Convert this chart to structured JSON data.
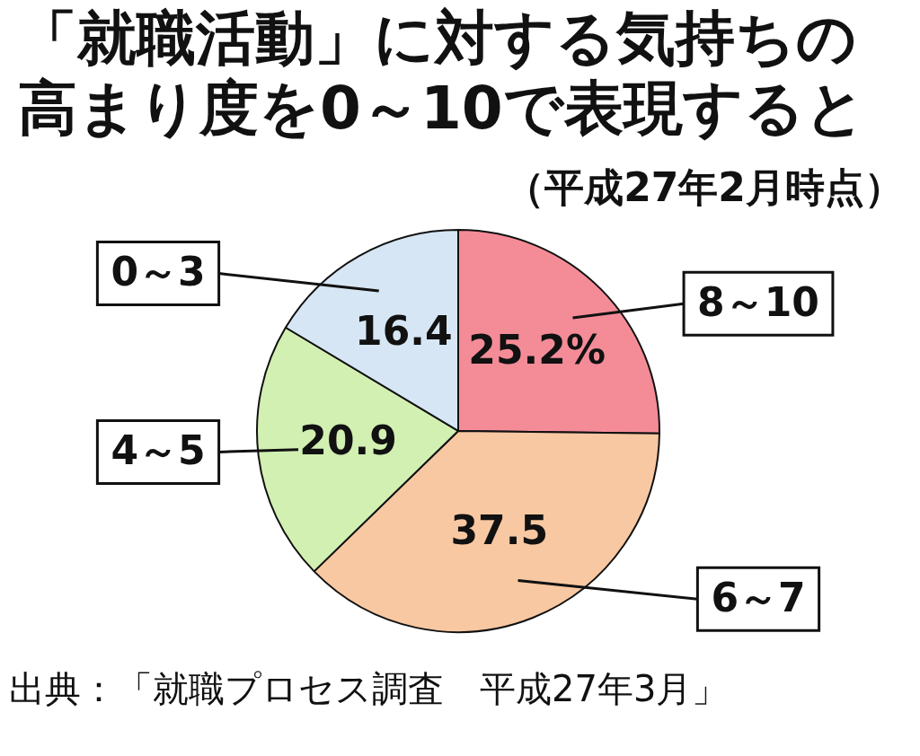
{
  "chart_data": {
    "type": "pie",
    "title": "「就職活動」に対する気持ちの高まり度を0～10で表現すると",
    "subtitle": "（平成27年2月時点）",
    "categories": [
      "8～10",
      "6～7",
      "4～5",
      "0～3"
    ],
    "values": [
      25.2,
      37.5,
      20.9,
      16.4
    ],
    "value_labels": [
      "25.2%",
      "37.5",
      "20.9",
      "16.4"
    ],
    "colors": [
      "#f48c98",
      "#f8c8a2",
      "#d2f0b2",
      "#d6e6f4"
    ],
    "annotations": [
      "出典：「就職プロセス調査　平成27年3月」"
    ],
    "legend": false
  }
}
